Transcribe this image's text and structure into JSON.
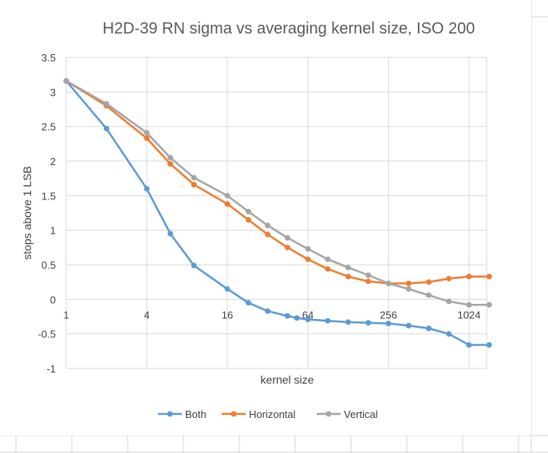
{
  "chart_data": {
    "type": "line",
    "title": "H2D-39 RN sigma vs averaging kernel size, ISO 200",
    "xlabel": "kernel size",
    "ylabel": "stops above 1 LSB",
    "x_scale": "log2",
    "x_ticks": [
      "1",
      "4",
      "16",
      "64",
      "256",
      "1024"
    ],
    "x_tick_values": [
      1,
      4,
      16,
      64,
      256,
      1024
    ],
    "y_ticks": [
      "3.5",
      "3",
      "2.5",
      "2",
      "1.5",
      "1",
      "0.5",
      "0",
      "-0.5",
      "-1"
    ],
    "y_tick_values": [
      3.5,
      3,
      2.5,
      2,
      1.5,
      1,
      0.5,
      0,
      -0.5,
      -1
    ],
    "ylim": [
      -1,
      3.5
    ],
    "grid": true,
    "legend_position": "bottom",
    "x": [
      1,
      2,
      4,
      6,
      9,
      16,
      23,
      32,
      45,
      53,
      64,
      90,
      128,
      181,
      256,
      362,
      512,
      724,
      1024,
      1448
    ],
    "series": [
      {
        "name": "Both",
        "color": "#5b9bd5",
        "x": [
          1,
          2,
          4,
          6,
          9,
          16,
          23,
          32,
          45,
          53,
          64,
          90,
          128,
          181,
          256,
          362,
          512,
          724,
          1024,
          1448
        ],
        "values": [
          3.16,
          2.47,
          1.6,
          0.95,
          0.49,
          0.15,
          -0.05,
          -0.17,
          -0.24,
          -0.27,
          -0.29,
          -0.31,
          -0.33,
          -0.34,
          -0.35,
          -0.38,
          -0.42,
          -0.5,
          -0.66,
          -0.66
        ]
      },
      {
        "name": "Horizontal",
        "color": "#ed7d31",
        "x": [
          1,
          2,
          4,
          6,
          9,
          16,
          23,
          32,
          45,
          64,
          90,
          128,
          181,
          256,
          362,
          512,
          724,
          1024,
          1448
        ],
        "values": [
          3.16,
          2.8,
          2.33,
          1.96,
          1.66,
          1.38,
          1.15,
          0.94,
          0.75,
          0.58,
          0.44,
          0.33,
          0.26,
          0.23,
          0.23,
          0.25,
          0.3,
          0.33,
          0.33
        ]
      },
      {
        "name": "Vertical",
        "color": "#a5a5a5",
        "x": [
          1,
          2,
          4,
          6,
          9,
          16,
          23,
          32,
          45,
          64,
          90,
          128,
          181,
          256,
          362,
          512,
          724,
          1024,
          1448
        ],
        "values": [
          3.16,
          2.83,
          2.41,
          2.05,
          1.76,
          1.5,
          1.27,
          1.07,
          0.89,
          0.73,
          0.58,
          0.46,
          0.35,
          0.23,
          0.15,
          0.06,
          -0.03,
          -0.08,
          -0.08
        ]
      }
    ]
  }
}
